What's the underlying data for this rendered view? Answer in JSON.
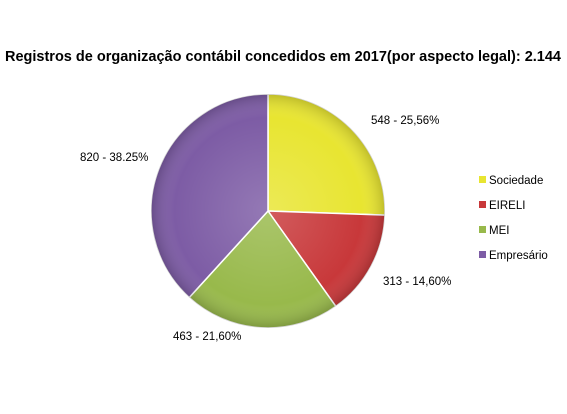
{
  "chart_data": {
    "type": "pie",
    "title": "Registros de organização contábil concedidos em 2017(por aspecto legal): 2.144",
    "legend_position": "right",
    "slices": [
      {
        "name": "Sociedade",
        "value": 548,
        "label": "548 - 25,56%",
        "color": "#E8E531"
      },
      {
        "name": "EIRELI",
        "value": 313,
        "label": "313 - 14,60%",
        "color": "#C8383A"
      },
      {
        "name": "MEI",
        "value": 463,
        "label": "463 - 21,60%",
        "color": "#98B94B"
      },
      {
        "name": "Empresário",
        "value": 820,
        "label": "820 - 38.25%",
        "color": "#7D5CA5"
      }
    ]
  }
}
